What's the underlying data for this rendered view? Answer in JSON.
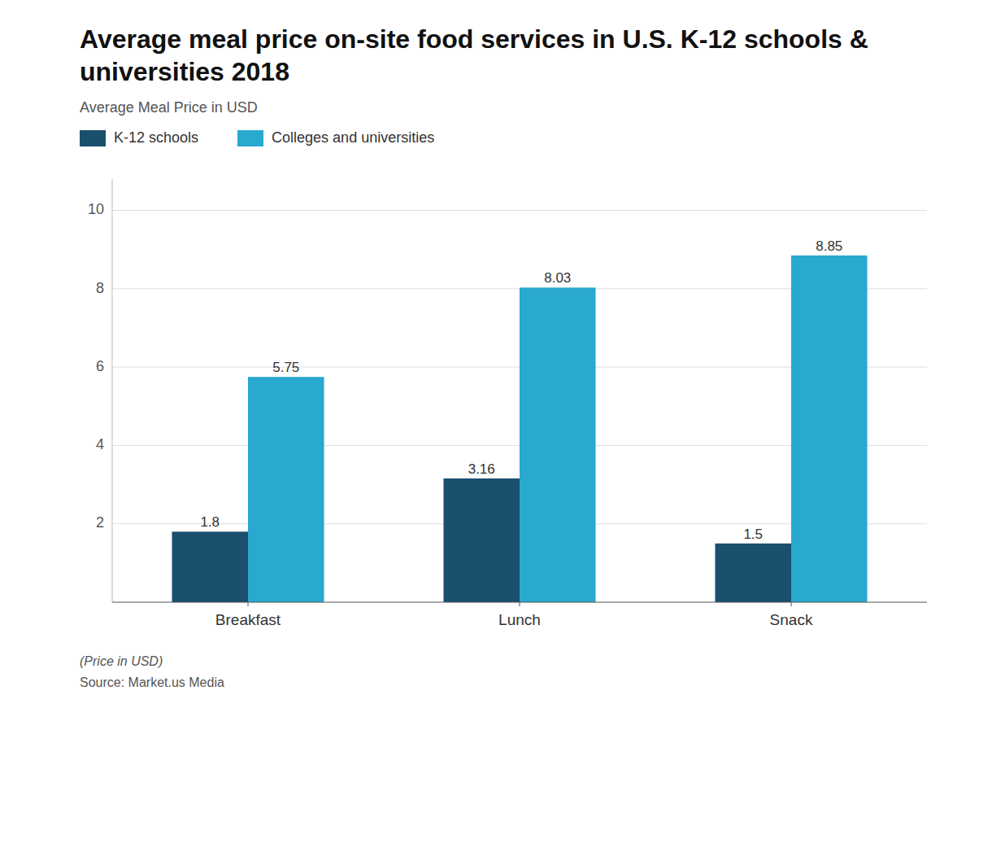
{
  "chart_data": {
    "type": "bar",
    "title": "Average meal price on-site food services in U.S. K-12 schools & universities 2018",
    "subtitle": "Average Meal Price in USD",
    "categories": [
      "Breakfast",
      "Lunch",
      "Snack"
    ],
    "series": [
      {
        "name": "K-12 schools",
        "color": "#1a4f6e",
        "values": [
          1.8,
          3.16,
          1.5
        ]
      },
      {
        "name": "Colleges and universities",
        "color": "#29a8d0",
        "values": [
          5.75,
          8.03,
          8.85
        ]
      }
    ],
    "ylim": [
      0,
      10.8
    ],
    "yticks": [
      2,
      4,
      6,
      8,
      10
    ],
    "grid": true,
    "data_labels": true,
    "legend": "top-left",
    "annotations": [
      "(Price in USD)",
      "Source: Market.us Media"
    ]
  }
}
